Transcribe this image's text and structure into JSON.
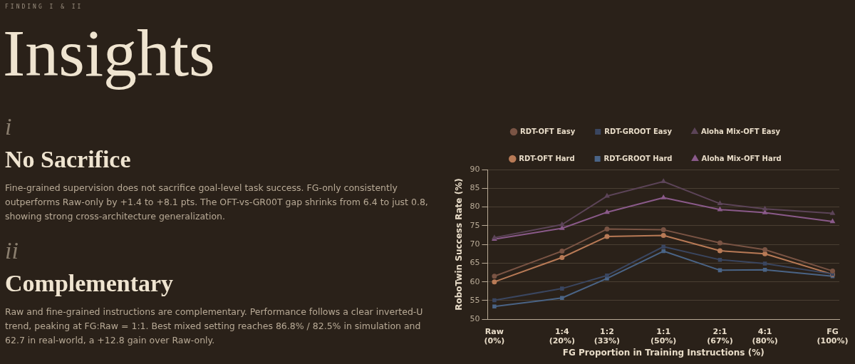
{
  "chart_data": {
    "type": "line",
    "subtitle": "FINDING I & II",
    "title": "Insights",
    "annotations": [
      "i",
      "No Sacrifice",
      "Fine-grained supervision does not sacrifice goal-level task success. FG-only consistently outperforms Raw-only by +1.4 to +8.1 pts. The OFT-vs-GR00T gap shrinks from 6.4 to just 0.8, showing strong cross-architecture generalization.",
      "ii",
      "Complementary",
      "Raw and fine-grained instructions are complementary. Performance follows a clear inverted-U trend, peaking at FG:Raw = 1:1. Best mixed setting reaches 86.8% / 82.5% in simulation and 62.7 in real-world, a +12.8 gain over Raw-only."
    ],
    "xlabel": "FG Proportion in Training Instructions (%)",
    "ylabel": "RoboTwin Success Rate (%)",
    "x": [
      0,
      20,
      33.3,
      50,
      66.7,
      80,
      100
    ],
    "xlim": [
      -2,
      102
    ],
    "xticks": [
      {
        "value": 0,
        "label": "Raw\n(0%)"
      },
      {
        "value": 20,
        "label": "1:4\n(20%)"
      },
      {
        "value": 33.3,
        "label": "1:2\n(33%)"
      },
      {
        "value": 50,
        "label": "1:1\n(50%)"
      },
      {
        "value": 66.7,
        "label": "2:1\n(67%)"
      },
      {
        "value": 80,
        "label": "4:1\n(80%)"
      },
      {
        "value": 100,
        "label": "FG\n(100%)"
      }
    ],
    "ylim": [
      50,
      90
    ],
    "yticks": [
      50,
      55,
      60,
      65,
      70,
      75,
      80,
      85,
      90
    ],
    "grid": "y",
    "legend": "top",
    "line_style": "solid",
    "series": [
      {
        "name": "RDT-OFT Easy",
        "color": "#7a5444",
        "marker": "circle",
        "values": [
          61.5,
          68.2,
          74.1,
          73.9,
          70.4,
          68.6,
          62.9
        ]
      },
      {
        "name": "RDT-GROOT Easy",
        "color": "#3a4660",
        "marker": "square",
        "values": [
          55.1,
          58.2,
          61.7,
          69.4,
          65.9,
          64.9,
          62.1
        ]
      },
      {
        "name": "Aloha Mix-OFT Easy",
        "color": "#5c4458",
        "marker": "triangle",
        "values": [
          71.8,
          75.3,
          82.9,
          86.8,
          80.9,
          79.5,
          78.3
        ]
      },
      {
        "name": "RDT-OFT Hard",
        "color": "#b87a56",
        "marker": "circle",
        "values": [
          60.0,
          66.5,
          72.1,
          72.4,
          68.3,
          67.5,
          62.0
        ]
      },
      {
        "name": "RDT-GROOT Hard",
        "color": "#4a6486",
        "marker": "square",
        "values": [
          53.4,
          55.7,
          60.9,
          68.2,
          63.1,
          63.2,
          61.5
        ]
      },
      {
        "name": "Aloha Mix-OFT Hard",
        "color": "#8a5a8a",
        "marker": "triangle",
        "values": [
          71.4,
          74.3,
          78.6,
          82.5,
          79.3,
          78.5,
          76.1
        ]
      }
    ]
  }
}
